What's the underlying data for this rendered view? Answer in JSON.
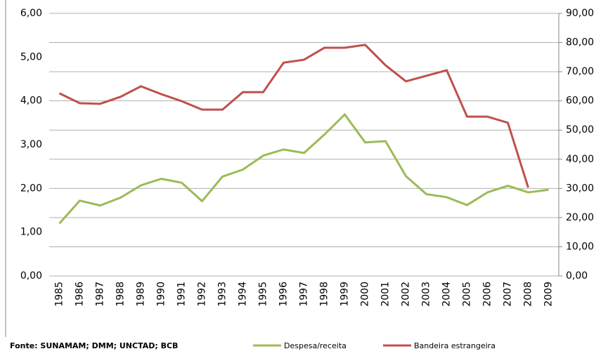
{
  "chart_data": {
    "type": "line",
    "source": "Fonte: SUNAMAM; DMM; UNCTAD; BCB",
    "categories": [
      "1985",
      "1986",
      "1987",
      "1988",
      "1989",
      "1990",
      "1991",
      "1992",
      "1993",
      "1994",
      "1995",
      "1996",
      "1997",
      "1998",
      "1999",
      "2000",
      "2001",
      "2002",
      "2003",
      "2004",
      "2005",
      "2006",
      "2007",
      "2008",
      "2009"
    ],
    "series": [
      {
        "name": "Despesa/receita",
        "color": "#9bbb59",
        "axis": "y",
        "values": [
          1.2,
          1.72,
          1.61,
          1.79,
          2.07,
          2.22,
          2.13,
          1.71,
          2.27,
          2.43,
          2.75,
          2.89,
          2.81,
          3.23,
          3.69,
          3.05,
          3.08,
          2.28,
          1.87,
          1.8,
          1.62,
          1.91,
          2.06,
          1.91,
          1.97
        ]
      },
      {
        "name": "Bandeira estrangeira",
        "color": "#c0504d",
        "axis": "y2",
        "values": [
          62.6,
          59.2,
          59,
          61.4,
          65,
          62.3,
          59.9,
          57,
          57,
          63,
          63,
          73.1,
          74.1,
          78.2,
          78.2,
          79.2,
          72.2,
          66.7,
          68.6,
          70.5,
          54.6,
          54.6,
          52.5,
          30.3,
          null
        ]
      }
    ],
    "ylim": [
      0,
      6
    ],
    "yticks": [
      {
        "value": 0,
        "label": "0,00"
      },
      {
        "value": 1,
        "label": "1,00"
      },
      {
        "value": 2,
        "label": "2,00"
      },
      {
        "value": 3,
        "label": "3,00"
      },
      {
        "value": 4,
        "label": "4,00"
      },
      {
        "value": 5,
        "label": "5,00"
      },
      {
        "value": 6,
        "label": "6,00"
      }
    ],
    "y2lim": [
      0,
      90
    ],
    "y2ticks": [
      {
        "value": 0,
        "label": "0,00"
      },
      {
        "value": 10,
        "label": "10,00"
      },
      {
        "value": 20,
        "label": "20,00"
      },
      {
        "value": 30,
        "label": "30,00"
      },
      {
        "value": 40,
        "label": "40,00"
      },
      {
        "value": 50,
        "label": "50,00"
      },
      {
        "value": 60,
        "label": "60,00"
      },
      {
        "value": 70,
        "label": "70,00"
      },
      {
        "value": 80,
        "label": "80,00"
      },
      {
        "value": 90,
        "label": "90,00"
      }
    ],
    "grid": true
  }
}
